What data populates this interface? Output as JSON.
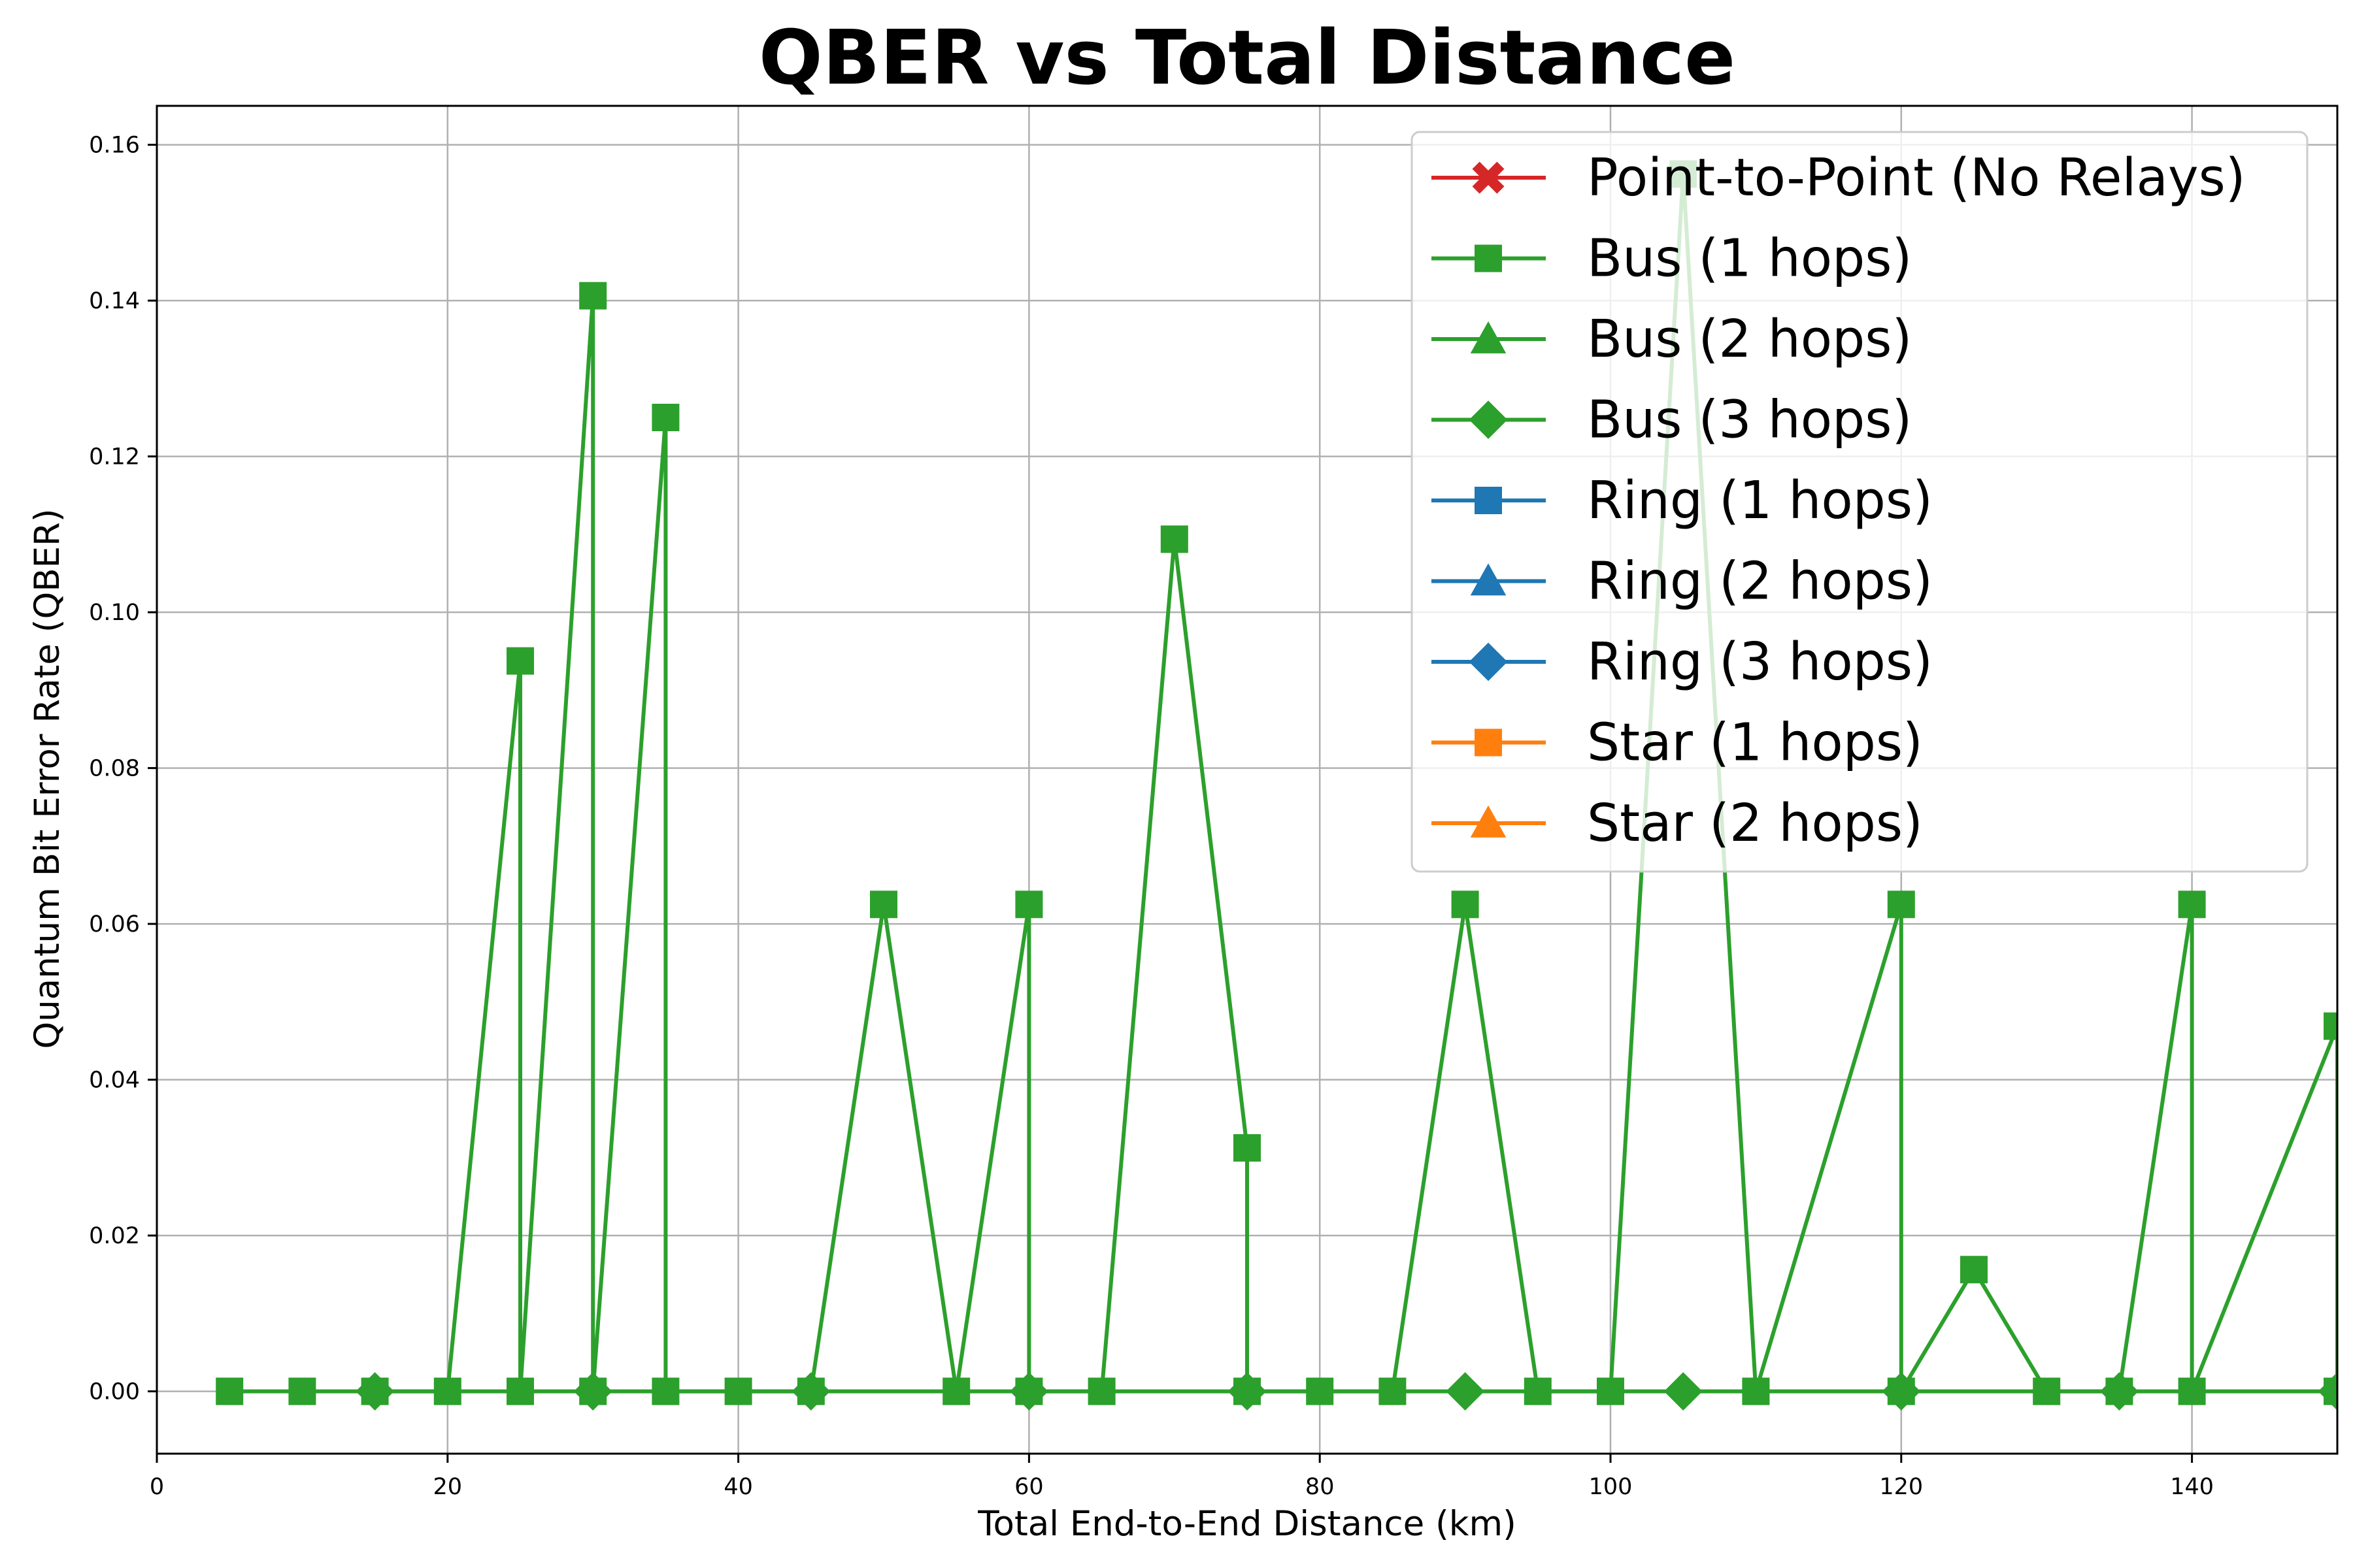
{
  "chart_data": {
    "type": "line",
    "title": "QBER vs Total Distance",
    "xlabel": "Total End-to-End Distance (km)",
    "ylabel": "Quantum Bit Error Rate (QBER)",
    "xlim": [
      0,
      150
    ],
    "ylim": [
      -0.008,
      0.165
    ],
    "xticks": [
      0,
      20,
      40,
      60,
      80,
      100,
      120,
      140
    ],
    "xtick_labels": [
      "0",
      "20",
      "40",
      "60",
      "80",
      "100",
      "120",
      "140"
    ],
    "yticks": [
      0.0,
      0.02,
      0.04,
      0.06,
      0.08,
      0.1,
      0.12,
      0.14,
      0.16
    ],
    "ytick_labels": [
      "0.00",
      "0.02",
      "0.04",
      "0.06",
      "0.08",
      "0.10",
      "0.12",
      "0.14",
      "0.16"
    ],
    "grid": true,
    "legend_position": "top-right",
    "series": [
      {
        "name": "Point-to-Point (No Relays)",
        "color": "#d62728",
        "marker": "x",
        "x": [],
        "y": []
      },
      {
        "name": "Bus (1 hops)",
        "color": "#2ca02c",
        "marker": "square",
        "x": [
          5,
          10,
          15,
          20,
          25,
          25,
          30,
          30,
          35,
          35,
          40,
          45,
          50,
          55,
          60,
          60,
          65,
          70,
          75,
          75,
          80,
          85,
          90,
          95,
          100,
          105,
          110,
          120,
          120,
          125,
          130,
          135,
          140,
          140,
          150,
          150
        ],
        "y": [
          0,
          0,
          0,
          0,
          0.09375,
          0,
          0.140625,
          0,
          0.125,
          0,
          0,
          0,
          0.0625,
          0,
          0.0625,
          0,
          0,
          0.109375,
          0.03125,
          0,
          0,
          0,
          0.0625,
          0,
          0,
          0.15625,
          0,
          0.0625,
          0,
          0.015625,
          0,
          0,
          0.0625,
          0,
          0.046875,
          0
        ]
      },
      {
        "name": "Bus (2 hops)",
        "color": "#2ca02c",
        "marker": "triangle",
        "x": [],
        "y": []
      },
      {
        "name": "Bus (3 hops)",
        "color": "#2ca02c",
        "marker": "diamond",
        "x": [
          15,
          30,
          45,
          60,
          75,
          90,
          105,
          120,
          135,
          150
        ],
        "y": [
          0,
          0,
          0,
          0,
          0,
          0,
          0,
          0,
          0,
          0
        ]
      },
      {
        "name": "Ring (1 hops)",
        "color": "#1f77b4",
        "marker": "square",
        "x": [],
        "y": []
      },
      {
        "name": "Ring (2 hops)",
        "color": "#1f77b4",
        "marker": "triangle",
        "x": [],
        "y": []
      },
      {
        "name": "Ring (3 hops)",
        "color": "#1f77b4",
        "marker": "diamond",
        "x": [],
        "y": []
      },
      {
        "name": "Star (1 hops)",
        "color": "#ff7f0e",
        "marker": "square",
        "x": [],
        "y": []
      },
      {
        "name": "Star (2 hops)",
        "color": "#ff7f0e",
        "marker": "triangle",
        "x": [],
        "y": []
      }
    ]
  }
}
